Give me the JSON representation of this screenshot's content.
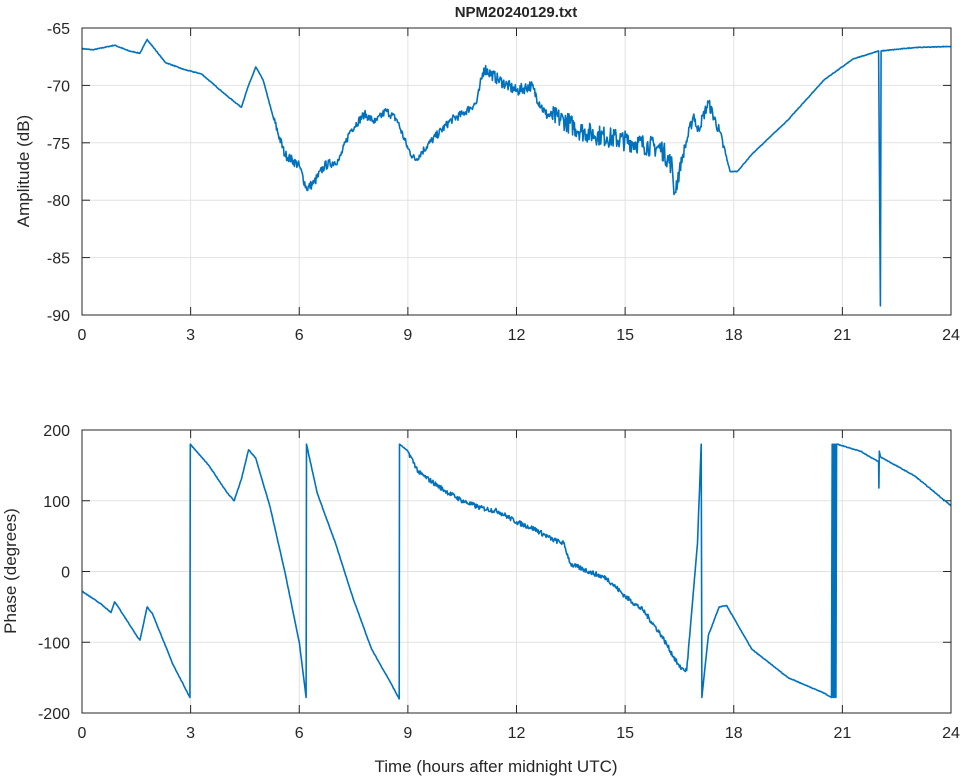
{
  "chart_data": [
    {
      "type": "line",
      "title": "NPM20240129.txt",
      "xlabel": "",
      "ylabel": "Amplitude (dB)",
      "xlim": [
        0,
        24
      ],
      "ylim": [
        -90,
        -65
      ],
      "xticks": [
        "0",
        "3",
        "6",
        "9",
        "12",
        "15",
        "18",
        "21",
        "24"
      ],
      "yticks": [
        "-65",
        "-70",
        "-75",
        "-80",
        "-85",
        "-90"
      ],
      "grid": true,
      "color": "#0072BD",
      "series": [
        {
          "name": "Amplitude",
          "x": [
            0,
            0.3,
            0.9,
            1.3,
            1.6,
            1.8,
            2.0,
            2.3,
            2.8,
            3.3,
            4.0,
            4.4,
            4.6,
            4.8,
            5.0,
            5.3,
            5.6,
            6.0,
            6.2,
            6.4,
            6.7,
            7.1,
            7.4,
            7.8,
            8.1,
            8.4,
            8.7,
            9.0,
            9.2,
            9.6,
            10.2,
            10.5,
            10.9,
            11.1,
            11.5,
            12.0,
            12.4,
            12.8,
            13.3,
            13.8,
            14.5,
            15.3,
            16.0,
            16.3,
            16.35,
            16.6,
            16.9,
            17.0,
            17.3,
            17.6,
            17.9,
            18.1,
            18.5,
            19.5,
            20.5,
            21.3,
            22.0,
            22.05,
            22.07,
            23.0,
            24.0
          ],
          "y": [
            -66.8,
            -66.9,
            -66.5,
            -67.0,
            -67.2,
            -66.0,
            -66.8,
            -68.0,
            -68.6,
            -69.0,
            -70.9,
            -71.9,
            -70.0,
            -68.4,
            -69.5,
            -73.0,
            -76.0,
            -77.0,
            -79.0,
            -78.5,
            -77.0,
            -76.5,
            -74.0,
            -72.5,
            -73.2,
            -72.2,
            -73.0,
            -75.5,
            -76.5,
            -75.0,
            -73.0,
            -72.5,
            -71.5,
            -68.5,
            -69.5,
            -70.5,
            -70.0,
            -72.5,
            -73.0,
            -74.0,
            -74.5,
            -75.0,
            -75.5,
            -77.0,
            -79.5,
            -76.0,
            -72.5,
            -74.0,
            -71.5,
            -74.0,
            -77.5,
            -77.5,
            -76.0,
            -73.0,
            -69.5,
            -67.7,
            -67.0,
            -89.2,
            -67.0,
            -66.7,
            -66.6
          ]
        }
      ]
    },
    {
      "type": "line",
      "title": "",
      "xlabel": "Time (hours after midnight UTC)",
      "ylabel": "Phase (degrees)",
      "xlim": [
        0,
        24
      ],
      "ylim": [
        -200,
        200
      ],
      "xticks": [
        "0",
        "3",
        "6",
        "9",
        "12",
        "15",
        "18",
        "21",
        "24"
      ],
      "yticks": [
        "200",
        "100",
        "0",
        "-100",
        "-200"
      ],
      "grid": true,
      "color": "#0072BD",
      "series": [
        {
          "name": "Phase",
          "x": [
            0,
            0.5,
            0.8,
            0.9,
            1.0,
            1.5,
            1.6,
            1.8,
            1.95,
            2.5,
            2.98,
            2.99,
            3.5,
            4.0,
            4.2,
            4.4,
            4.6,
            4.8,
            5.2,
            5.6,
            6.0,
            6.19,
            6.2,
            6.5,
            7.0,
            7.5,
            8.0,
            8.5,
            8.76,
            8.77,
            9.0,
            9.3,
            10.0,
            10.5,
            11.0,
            11.5,
            12.0,
            12.5,
            13.0,
            13.3,
            13.5,
            14.0,
            14.5,
            15.0,
            15.5,
            16.0,
            16.5,
            16.7,
            17.0,
            17.1,
            17.12,
            17.3,
            17.6,
            17.8,
            18.5,
            19.5,
            20.5,
            20.7,
            20.72,
            20.74,
            20.76,
            20.78,
            20.8,
            20.82,
            20.84,
            20.86,
            21.5,
            22.0,
            22.01,
            22.02,
            22.05,
            23.0,
            24.0
          ],
          "y": [
            -28,
            -45,
            -58,
            -43,
            -50,
            -90,
            -97,
            -50,
            -60,
            -130,
            -178,
            180,
            150,
            112,
            100,
            130,
            172,
            160,
            90,
            0,
            -100,
            -178,
            180,
            110,
            40,
            -40,
            -110,
            -155,
            -180,
            180,
            170,
            140,
            115,
            100,
            90,
            85,
            70,
            60,
            45,
            40,
            10,
            0,
            -10,
            -35,
            -55,
            -90,
            -135,
            -140,
            40,
            180,
            -178,
            -90,
            -50,
            -48,
            -110,
            -150,
            -172,
            -178,
            180,
            -178,
            180,
            -178,
            180,
            -178,
            180,
            180,
            170,
            155,
            118,
            170,
            162,
            135,
            93
          ]
        }
      ]
    }
  ]
}
